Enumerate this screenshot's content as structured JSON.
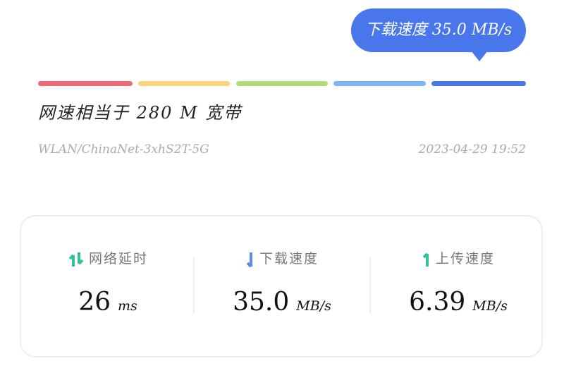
{
  "tooltip": {
    "label": "下载速度",
    "value": "35.0",
    "unit": "MB/s"
  },
  "speed_scale": {
    "colors": [
      "#f06a7a",
      "#f8d47c",
      "#aedb7a",
      "#7fb5f5",
      "#4a76ec"
    ],
    "active_index": 4
  },
  "summary": "网速相当于 280 M 宽带",
  "network": "WLAN/ChinaNet-3xhS2T-5G",
  "timestamp": "2023-04-29 19:52",
  "stats": [
    {
      "label": "网络延时",
      "value": "26",
      "unit": "ms",
      "icon": "up-down-arrows-icon",
      "color": "#2fc29b"
    },
    {
      "label": "下载速度",
      "value": "35.0",
      "unit": "MB/s",
      "icon": "down-arrow-icon",
      "color": "#5b8ae8"
    },
    {
      "label": "上传速度",
      "value": "6.39",
      "unit": "MB/s",
      "icon": "up-arrow-icon",
      "color": "#2fc29b"
    }
  ]
}
